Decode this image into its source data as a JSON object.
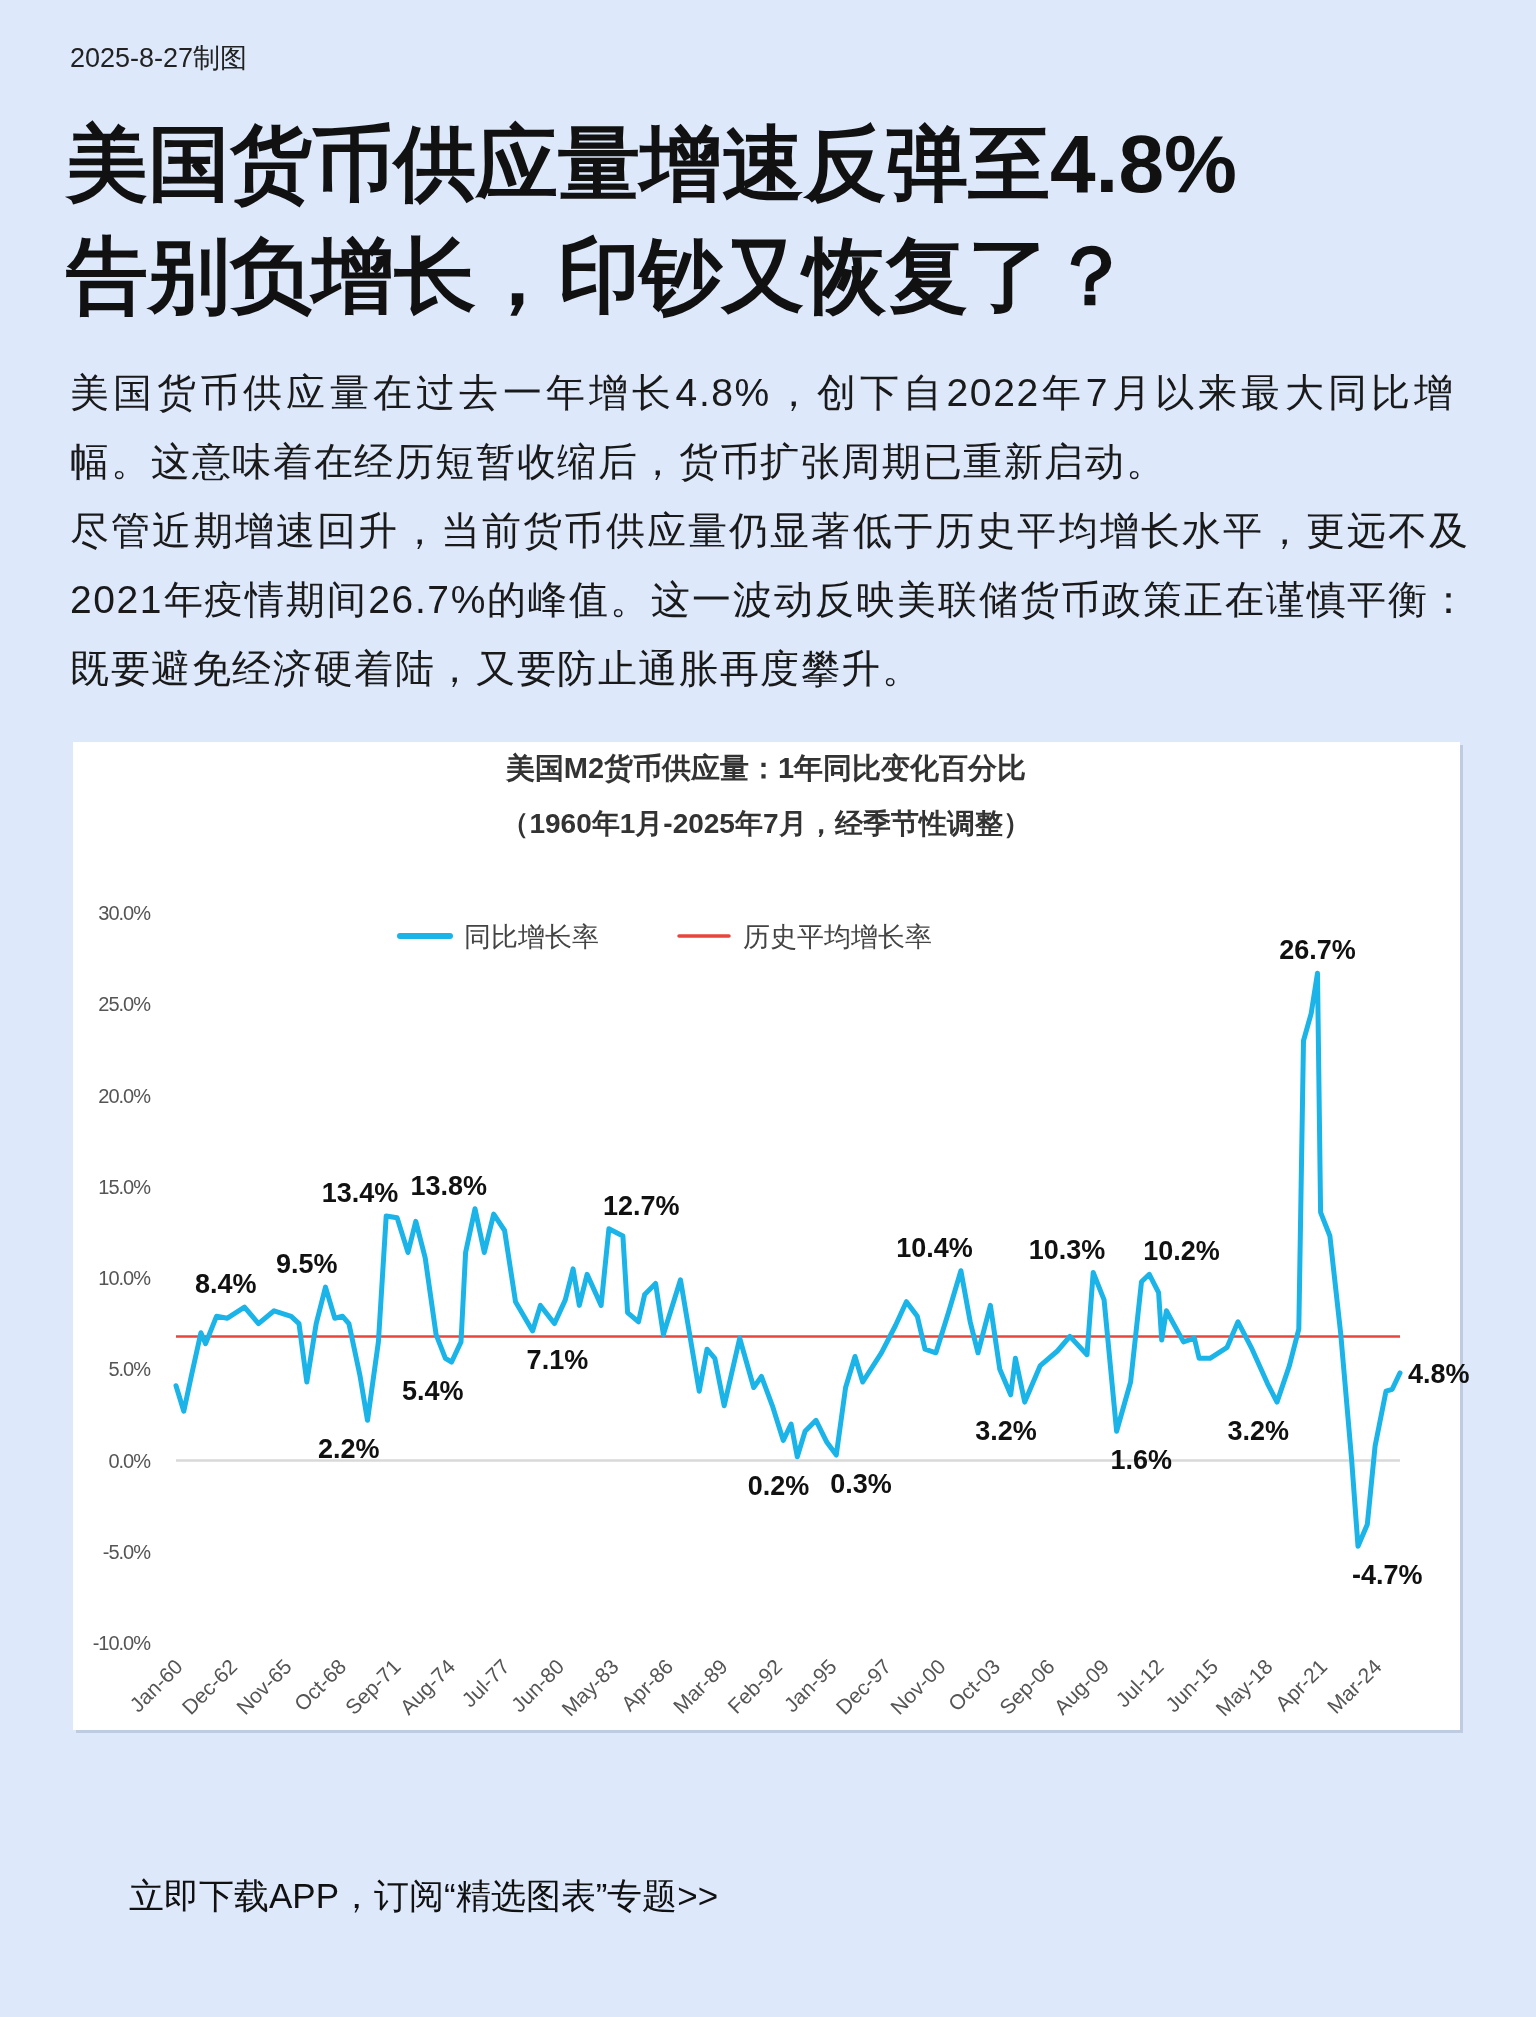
{
  "chart_data": {
    "type": "line",
    "title": "美国M2货币供应量：1年同比变化百分比",
    "subtitle": "（1960年1月-2025年7月，经季节性调整）",
    "x": [
      "1960-01",
      "1960-06",
      "1960-11",
      "1961-05",
      "1961-08",
      "1962-03",
      "1962-10",
      "1963-09",
      "1964-06",
      "1965-04",
      "1966-03",
      "1966-08",
      "1967-01",
      "1967-07",
      "1968-01",
      "1968-07",
      "1968-12",
      "1969-04",
      "1969-11",
      "1970-04",
      "1970-11",
      "1971-04",
      "1971-11",
      "1972-06",
      "1972-11",
      "1973-05",
      "1973-12",
      "1974-06",
      "1974-10",
      "1975-04",
      "1975-07",
      "1976-01",
      "1976-07",
      "1977-01",
      "1977-08",
      "1978-03",
      "1979-02",
      "1979-07",
      "1980-04",
      "1980-11",
      "1981-04",
      "1981-08",
      "1982-01",
      "1982-10",
      "1983-03",
      "1983-12",
      "1984-03",
      "1984-10",
      "1985-02",
      "1985-09",
      "1986-02",
      "1987-01",
      "1988-01",
      "1988-06",
      "1988-11",
      "1989-05",
      "1990-03",
      "1990-12",
      "1991-05",
      "1991-12",
      "1992-07",
      "1992-12",
      "1993-04",
      "1993-09",
      "1994-04",
      "1994-11",
      "1995-05",
      "1995-11",
      "1996-05",
      "1996-10",
      "1997-10",
      "1998-07",
      "1999-02",
      "1999-09",
      "2000-02",
      "2000-09",
      "2001-05",
      "2002-01",
      "2002-07",
      "2002-12",
      "2003-08",
      "2004-02",
      "2004-09",
      "2004-12",
      "2005-06",
      "2006-04",
      "2007-03",
      "2007-11",
      "2008-10",
      "2009-02",
      "2009-09",
      "2010-05",
      "2011-02",
      "2011-09",
      "2012-02",
      "2012-08",
      "2012-10",
      "2013-01",
      "2013-12",
      "2014-07",
      "2014-10",
      "2015-05",
      "2016-04",
      "2016-11",
      "2017-08",
      "2018-06",
      "2018-12",
      "2019-08",
      "2020-02",
      "2020-05",
      "2020-10",
      "2021-02",
      "2021-04",
      "2021-10",
      "2022-05",
      "2022-12",
      "2023-04",
      "2023-10",
      "2024-03",
      "2024-10",
      "2025-02",
      "2025-07"
    ],
    "series": [
      {
        "name": "同比增长率",
        "color": "#1ab4e8",
        "values": [
          4.1,
          2.7,
          4.7,
          7.0,
          6.4,
          7.9,
          7.8,
          8.4,
          7.5,
          8.2,
          7.9,
          7.5,
          4.3,
          7.5,
          9.5,
          7.8,
          7.9,
          7.5,
          4.7,
          2.2,
          6.5,
          13.4,
          13.3,
          11.4,
          13.1,
          11.1,
          6.9,
          5.6,
          5.4,
          6.5,
          11.4,
          13.8,
          11.4,
          13.5,
          12.6,
          8.7,
          7.1,
          8.5,
          7.5,
          8.8,
          10.5,
          8.5,
          10.2,
          8.5,
          12.7,
          12.3,
          8.1,
          7.6,
          9.1,
          9.7,
          6.9,
          9.9,
          3.8,
          6.1,
          5.6,
          3.0,
          6.7,
          4.0,
          4.6,
          3.0,
          1.1,
          2.0,
          0.2,
          1.6,
          2.2,
          1.0,
          0.3,
          4.0,
          5.7,
          4.3,
          5.9,
          7.4,
          8.7,
          7.9,
          6.1,
          5.9,
          8.1,
          10.4,
          7.6,
          5.9,
          8.5,
          5.0,
          3.6,
          5.6,
          3.2,
          5.2,
          6.0,
          6.8,
          5.8,
          10.3,
          8.8,
          1.6,
          4.3,
          9.8,
          10.2,
          9.2,
          6.6,
          8.2,
          6.5,
          6.7,
          5.6,
          5.6,
          6.2,
          7.6,
          6.1,
          4.2,
          3.2,
          5.2,
          7.2,
          23.0,
          24.5,
          26.7,
          13.6,
          12.3,
          6.9,
          0.0,
          -4.7,
          -3.5,
          0.8,
          3.8,
          3.9,
          4.8
        ]
      }
    ],
    "xlim": [
      "1960-01",
      "2025-07"
    ],
    "xticks": [
      {
        "value": "1960-01",
        "label": "Jan-60"
      },
      {
        "value": "1962-12",
        "label": "Dec-62"
      },
      {
        "value": "1965-11",
        "label": "Nov-65"
      },
      {
        "value": "1968-10",
        "label": "Oct-68"
      },
      {
        "value": "1971-09",
        "label": "Sep-71"
      },
      {
        "value": "1974-08",
        "label": "Aug-74"
      },
      {
        "value": "1977-07",
        "label": "Jul-77"
      },
      {
        "value": "1980-06",
        "label": "Jun-80"
      },
      {
        "value": "1983-05",
        "label": "May-83"
      },
      {
        "value": "1986-04",
        "label": "Apr-86"
      },
      {
        "value": "1989-03",
        "label": "Mar-89"
      },
      {
        "value": "1992-02",
        "label": "Feb-92"
      },
      {
        "value": "1995-01",
        "label": "Jan-95"
      },
      {
        "value": "1997-12",
        "label": "Dec-97"
      },
      {
        "value": "2000-11",
        "label": "Nov-00"
      },
      {
        "value": "2003-10",
        "label": "Oct-03"
      },
      {
        "value": "2006-09",
        "label": "Sep-06"
      },
      {
        "value": "2009-08",
        "label": "Aug-09"
      },
      {
        "value": "2012-07",
        "label": "Jul-12"
      },
      {
        "value": "2015-06",
        "label": "Jun-15"
      },
      {
        "value": "2018-05",
        "label": "May-18"
      },
      {
        "value": "2021-04",
        "label": "Apr-21"
      },
      {
        "value": "2024-03",
        "label": "Mar-24"
      }
    ],
    "ylim": [
      -10,
      30
    ],
    "yticks": [
      {
        "value": 30,
        "label": "30.0%"
      },
      {
        "value": 25,
        "label": "25.0%"
      },
      {
        "value": 20,
        "label": "20.0%"
      },
      {
        "value": 15,
        "label": "15.0%"
      },
      {
        "value": 10,
        "label": "10.0%"
      },
      {
        "value": 5,
        "label": "5.0%"
      },
      {
        "value": 0,
        "label": "0.0%"
      },
      {
        "value": -5,
        "label": "-5.0%"
      },
      {
        "value": -10,
        "label": "-10.0%"
      }
    ],
    "ref_lines": [
      {
        "axis": "y",
        "value": 6.8,
        "label": "历史平均增长率",
        "color": "#e8463c"
      }
    ],
    "legend": "top",
    "annotations": [
      "2025-8-27制图",
      "美国货币供应量增速反弹至4.8%\n告别负增长，印钞又恢复了？",
      "美国货币供应量在过去一年增长4.8%，创下自2022年7月以来最大同比增幅。这意味着在经历短暂收缩后，货币扩张周期已重新启动。",
      "尽管近期增速回升，当前货币供应量仍显著低于历史平均增长水平，更远不及2021年疫情期间26.7%的峰值。这一波动反映美联储货币政策正在谨慎平衡：既要避免经济硬着陆，又要防止通胀再度攀升。",
      "立即下载APP，订阅“精选图表”专题>>",
      {
        "text": "8.4%",
        "x": "1963-09",
        "y": 8.4
      },
      {
        "text": "9.5%",
        "x": "1968-01",
        "y": 9.5
      },
      {
        "text": "2.2%",
        "x": "1970-04",
        "y": 2.2
      },
      {
        "text": "13.4%",
        "x": "1971-04",
        "y": 13.4
      },
      {
        "text": "5.4%",
        "x": "1974-10",
        "y": 5.4
      },
      {
        "text": "13.8%",
        "x": "1976-01",
        "y": 13.8
      },
      {
        "text": "7.1%",
        "x": "1979-02",
        "y": 7.1
      },
      {
        "text": "12.7%",
        "x": "1983-03",
        "y": 12.7
      },
      {
        "text": "0.2%",
        "x": "1993-04",
        "y": 0.2
      },
      {
        "text": "0.3%",
        "x": "1995-05",
        "y": 0.3
      },
      {
        "text": "10.4%",
        "x": "2002-01",
        "y": 10.4
      },
      {
        "text": "3.2%",
        "x": "2005-06",
        "y": 3.2
      },
      {
        "text": "10.3%",
        "x": "2009-02",
        "y": 10.3
      },
      {
        "text": "1.6%",
        "x": "2010-05",
        "y": 1.6
      },
      {
        "text": "10.2%",
        "x": "2012-02",
        "y": 10.2
      },
      {
        "text": "3.2%",
        "x": "2018-12",
        "y": 3.2
      },
      {
        "text": "26.7%",
        "x": "2021-02",
        "y": 26.7
      },
      {
        "text": "-4.7%",
        "x": "2023-04",
        "y": -4.7
      },
      {
        "text": "4.8%",
        "x": "2025-07",
        "y": 4.8
      }
    ]
  }
}
